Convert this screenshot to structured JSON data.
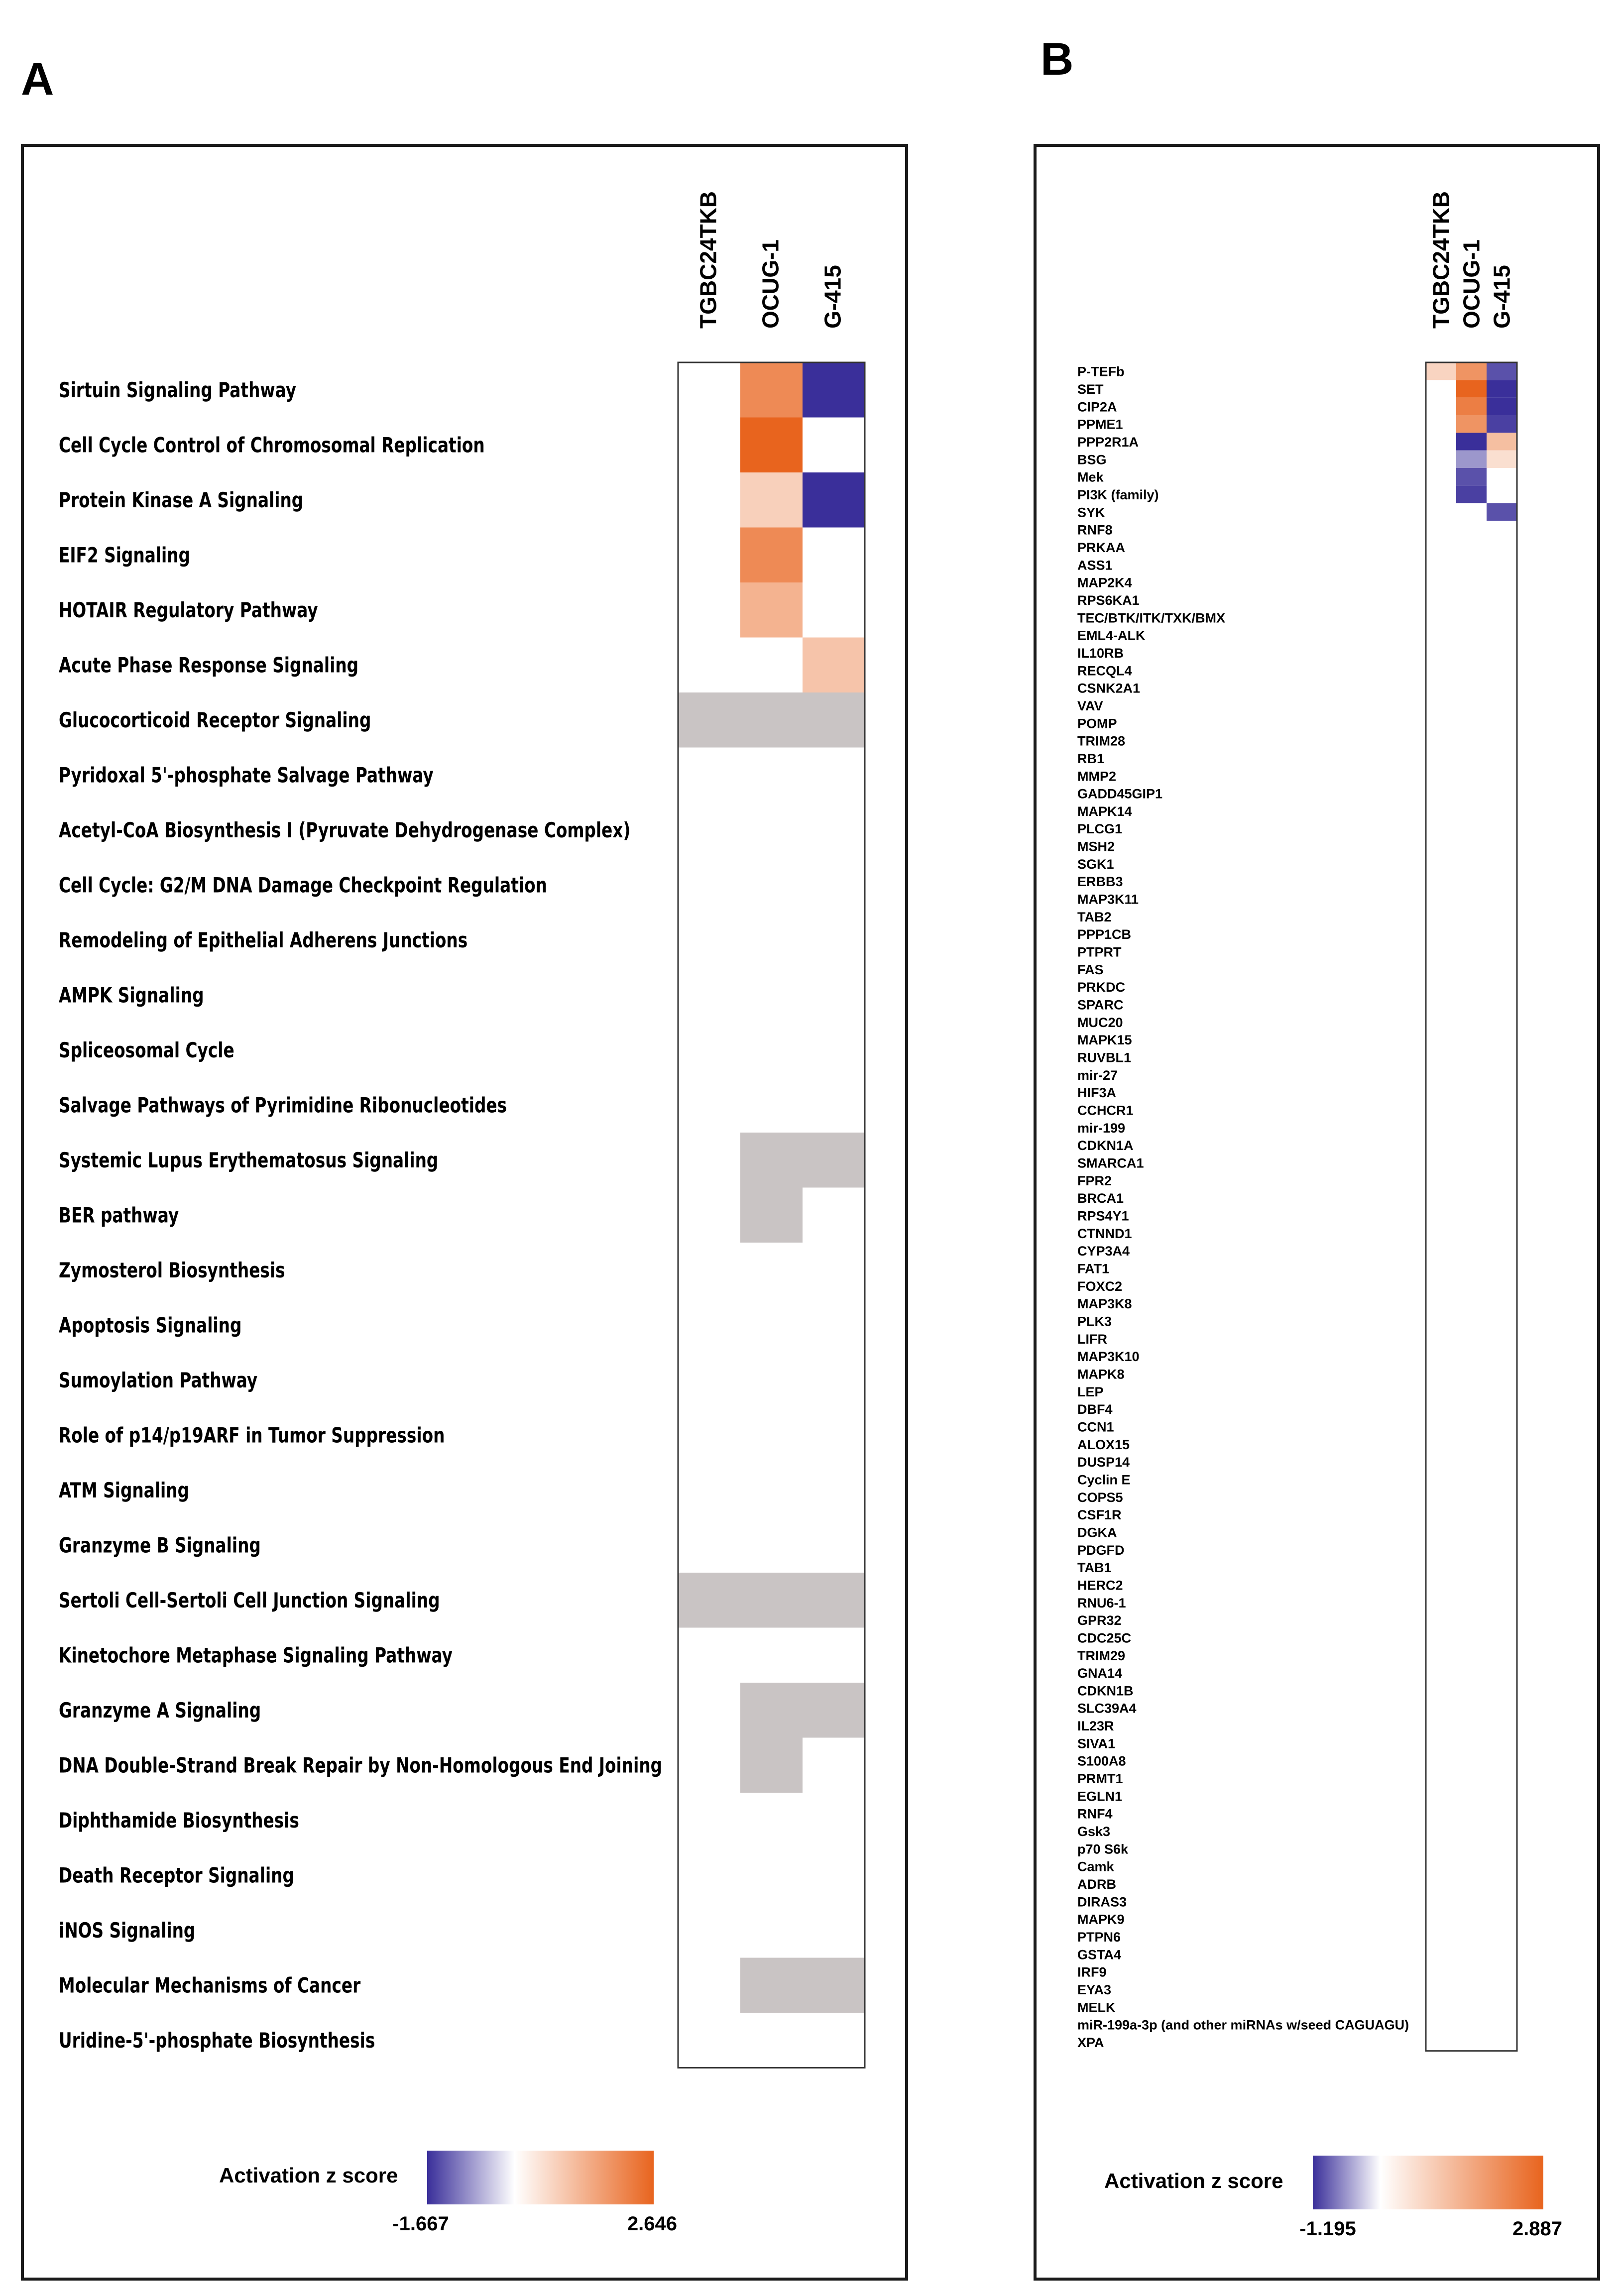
{
  "chart_data": [
    {
      "panel": "A",
      "type": "heatmap",
      "columns": [
        "TGBC24TKB",
        "OCUG-1",
        "G-415"
      ],
      "legend_title": "Activation z score",
      "scale_min": -1.667,
      "scale_max": 2.646,
      "scale_min_label": "-1.667",
      "scale_max_label": "2.646",
      "colors": {
        "low": "#3a2f9a",
        "mid": "#ffffff",
        "high": "#e8641e",
        "na": "#c9c4c4"
      },
      "rows": [
        {
          "label": "Sirtuin Signaling Pathway",
          "values": [
            null,
            2.0,
            -1.667
          ]
        },
        {
          "label": "Cell Cycle Control of Chromosomal Replication",
          "values": [
            null,
            2.646,
            null
          ]
        },
        {
          "label": "Protein Kinase A Signaling",
          "values": [
            null,
            0.8,
            -1.667
          ]
        },
        {
          "label": "EIF2 Signaling",
          "values": [
            null,
            2.0,
            null
          ]
        },
        {
          "label": "HOTAIR Regulatory Pathway",
          "values": [
            null,
            1.3,
            null
          ]
        },
        {
          "label": "Acute Phase Response Signaling",
          "values": [
            null,
            null,
            1.0
          ]
        },
        {
          "label": "Glucocorticoid Receptor Signaling",
          "values": [
            "na",
            "na",
            "na"
          ]
        },
        {
          "label": "Pyridoxal 5'-phosphate Salvage Pathway",
          "values": [
            null,
            null,
            null
          ]
        },
        {
          "label": "Acetyl-CoA Biosynthesis I (Pyruvate Dehydrogenase Complex)",
          "values": [
            null,
            null,
            null
          ]
        },
        {
          "label": "Cell Cycle: G2/M DNA Damage Checkpoint Regulation",
          "values": [
            null,
            null,
            null
          ]
        },
        {
          "label": "Remodeling of Epithelial Adherens Junctions",
          "values": [
            null,
            null,
            null
          ]
        },
        {
          "label": "AMPK Signaling",
          "values": [
            null,
            null,
            null
          ]
        },
        {
          "label": "Spliceosomal Cycle",
          "values": [
            null,
            null,
            null
          ]
        },
        {
          "label": "Salvage Pathways of Pyrimidine Ribonucleotides",
          "values": [
            null,
            null,
            null
          ]
        },
        {
          "label": "Systemic Lupus Erythematosus Signaling",
          "values": [
            null,
            "na",
            "na"
          ]
        },
        {
          "label": "BER pathway",
          "values": [
            null,
            "na",
            null
          ]
        },
        {
          "label": "Zymosterol Biosynthesis",
          "values": [
            null,
            null,
            null
          ]
        },
        {
          "label": "Apoptosis Signaling",
          "values": [
            null,
            null,
            null
          ]
        },
        {
          "label": "Sumoylation Pathway",
          "values": [
            null,
            null,
            null
          ]
        },
        {
          "label": "Role of p14/p19ARF in Tumor Suppression",
          "values": [
            null,
            null,
            null
          ]
        },
        {
          "label": "ATM Signaling",
          "values": [
            null,
            null,
            null
          ]
        },
        {
          "label": "Granzyme B Signaling",
          "values": [
            null,
            null,
            null
          ]
        },
        {
          "label": "Sertoli Cell-Sertoli Cell Junction Signaling",
          "values": [
            "na",
            "na",
            "na"
          ]
        },
        {
          "label": "Kinetochore Metaphase Signaling Pathway",
          "values": [
            null,
            null,
            null
          ]
        },
        {
          "label": "Granzyme A Signaling",
          "values": [
            null,
            "na",
            "na"
          ]
        },
        {
          "label": "DNA Double-Strand Break Repair by Non-Homologous End Joining",
          "values": [
            null,
            "na",
            null
          ]
        },
        {
          "label": "Diphthamide Biosynthesis",
          "values": [
            null,
            null,
            null
          ]
        },
        {
          "label": "Death Receptor Signaling",
          "values": [
            null,
            null,
            null
          ]
        },
        {
          "label": "iNOS Signaling",
          "values": [
            null,
            null,
            null
          ]
        },
        {
          "label": "Molecular Mechanisms of Cancer",
          "values": [
            null,
            "na",
            "na"
          ]
        },
        {
          "label": "Uridine-5'-phosphate Biosynthesis",
          "values": [
            null,
            null,
            null
          ]
        }
      ]
    },
    {
      "panel": "B",
      "type": "heatmap",
      "columns": [
        "TGBC24TKB",
        "OCUG-1",
        "G-415"
      ],
      "legend_title": "Activation z score",
      "scale_min": -1.195,
      "scale_max": 2.887,
      "scale_min_label": "-1.195",
      "scale_max_label": "2.887",
      "colors": {
        "low": "#3a2f9a",
        "mid": "#ffffff",
        "high": "#e8641e",
        "na": "#c9c4c4"
      },
      "rows": [
        {
          "label": "P-TEFb",
          "values": [
            0.8,
            2.0,
            -1.0
          ]
        },
        {
          "label": "SET",
          "values": [
            null,
            2.887,
            -1.195
          ]
        },
        {
          "label": "CIP2A",
          "values": [
            null,
            2.4,
            -1.195
          ]
        },
        {
          "label": "PPME1",
          "values": [
            null,
            2.0,
            -1.1
          ]
        },
        {
          "label": "PPP2R1A",
          "values": [
            null,
            -1.195,
            1.2
          ]
        },
        {
          "label": "BSG",
          "values": [
            null,
            -0.6,
            0.6
          ]
        },
        {
          "label": "Mek",
          "values": [
            null,
            -1.0,
            null
          ]
        },
        {
          "label": "PI3K (family)",
          "values": [
            null,
            -1.1,
            null
          ]
        },
        {
          "label": "SYK",
          "values": [
            null,
            null,
            -1.0
          ]
        },
        {
          "label": "RNF8",
          "values": [
            null,
            null,
            null
          ]
        },
        {
          "label": "PRKAA",
          "values": [
            null,
            null,
            null
          ]
        },
        {
          "label": "ASS1",
          "values": [
            null,
            null,
            null
          ]
        },
        {
          "label": "MAP2K4",
          "values": [
            null,
            null,
            null
          ]
        },
        {
          "label": "RPS6KA1",
          "values": [
            null,
            null,
            null
          ]
        },
        {
          "label": "TEC/BTK/ITK/TXK/BMX",
          "values": [
            null,
            null,
            null
          ]
        },
        {
          "label": "EML4-ALK",
          "values": [
            null,
            null,
            null
          ]
        },
        {
          "label": "IL10RB",
          "values": [
            null,
            null,
            null
          ]
        },
        {
          "label": "RECQL4",
          "values": [
            null,
            null,
            null
          ]
        },
        {
          "label": "CSNK2A1",
          "values": [
            null,
            null,
            null
          ]
        },
        {
          "label": "VAV",
          "values": [
            null,
            null,
            null
          ]
        },
        {
          "label": "POMP",
          "values": [
            null,
            null,
            null
          ]
        },
        {
          "label": "TRIM28",
          "values": [
            null,
            null,
            null
          ]
        },
        {
          "label": "RB1",
          "values": [
            null,
            null,
            null
          ]
        },
        {
          "label": "MMP2",
          "values": [
            null,
            null,
            null
          ]
        },
        {
          "label": "GADD45GIP1",
          "values": [
            null,
            null,
            null
          ]
        },
        {
          "label": "MAPK14",
          "values": [
            null,
            null,
            null
          ]
        },
        {
          "label": "PLCG1",
          "values": [
            null,
            null,
            null
          ]
        },
        {
          "label": "MSH2",
          "values": [
            null,
            null,
            null
          ]
        },
        {
          "label": "SGK1",
          "values": [
            null,
            null,
            null
          ]
        },
        {
          "label": "ERBB3",
          "values": [
            null,
            null,
            null
          ]
        },
        {
          "label": "MAP3K11",
          "values": [
            null,
            null,
            null
          ]
        },
        {
          "label": "TAB2",
          "values": [
            null,
            null,
            null
          ]
        },
        {
          "label": "PPP1CB",
          "values": [
            null,
            null,
            null
          ]
        },
        {
          "label": "PTPRT",
          "values": [
            null,
            null,
            null
          ]
        },
        {
          "label": "FAS",
          "values": [
            null,
            null,
            null
          ]
        },
        {
          "label": "PRKDC",
          "values": [
            null,
            null,
            null
          ]
        },
        {
          "label": "SPARC",
          "values": [
            null,
            null,
            null
          ]
        },
        {
          "label": "MUC20",
          "values": [
            null,
            null,
            null
          ]
        },
        {
          "label": "MAPK15",
          "values": [
            null,
            null,
            null
          ]
        },
        {
          "label": "RUVBL1",
          "values": [
            null,
            null,
            null
          ]
        },
        {
          "label": "mir-27",
          "values": [
            null,
            null,
            null
          ]
        },
        {
          "label": "HIF3A",
          "values": [
            null,
            null,
            null
          ]
        },
        {
          "label": "CCHCR1",
          "values": [
            null,
            null,
            null
          ]
        },
        {
          "label": "mir-199",
          "values": [
            null,
            null,
            null
          ]
        },
        {
          "label": "CDKN1A",
          "values": [
            null,
            null,
            null
          ]
        },
        {
          "label": "SMARCA1",
          "values": [
            null,
            null,
            null
          ]
        },
        {
          "label": "FPR2",
          "values": [
            null,
            null,
            null
          ]
        },
        {
          "label": "BRCA1",
          "values": [
            null,
            null,
            null
          ]
        },
        {
          "label": "RPS4Y1",
          "values": [
            null,
            null,
            null
          ]
        },
        {
          "label": "CTNND1",
          "values": [
            null,
            null,
            null
          ]
        },
        {
          "label": "CYP3A4",
          "values": [
            null,
            null,
            null
          ]
        },
        {
          "label": "FAT1",
          "values": [
            null,
            null,
            null
          ]
        },
        {
          "label": "FOXC2",
          "values": [
            null,
            null,
            null
          ]
        },
        {
          "label": "MAP3K8",
          "values": [
            null,
            null,
            null
          ]
        },
        {
          "label": "PLK3",
          "values": [
            null,
            null,
            null
          ]
        },
        {
          "label": "LIFR",
          "values": [
            null,
            null,
            null
          ]
        },
        {
          "label": "MAP3K10",
          "values": [
            null,
            null,
            null
          ]
        },
        {
          "label": "MAPK8",
          "values": [
            null,
            null,
            null
          ]
        },
        {
          "label": "LEP",
          "values": [
            null,
            null,
            null
          ]
        },
        {
          "label": "DBF4",
          "values": [
            null,
            null,
            null
          ]
        },
        {
          "label": "CCN1",
          "values": [
            null,
            null,
            null
          ]
        },
        {
          "label": "ALOX15",
          "values": [
            null,
            null,
            null
          ]
        },
        {
          "label": "DUSP14",
          "values": [
            null,
            null,
            null
          ]
        },
        {
          "label": "Cyclin E",
          "values": [
            null,
            null,
            null
          ]
        },
        {
          "label": "COPS5",
          "values": [
            null,
            null,
            null
          ]
        },
        {
          "label": "CSF1R",
          "values": [
            null,
            null,
            null
          ]
        },
        {
          "label": "DGKA",
          "values": [
            null,
            null,
            null
          ]
        },
        {
          "label": "PDGFD",
          "values": [
            null,
            null,
            null
          ]
        },
        {
          "label": "TAB1",
          "values": [
            null,
            null,
            null
          ]
        },
        {
          "label": "HERC2",
          "values": [
            null,
            null,
            null
          ]
        },
        {
          "label": "RNU6-1",
          "values": [
            null,
            null,
            null
          ]
        },
        {
          "label": "GPR32",
          "values": [
            null,
            null,
            null
          ]
        },
        {
          "label": "CDC25C",
          "values": [
            null,
            null,
            null
          ]
        },
        {
          "label": "TRIM29",
          "values": [
            null,
            null,
            null
          ]
        },
        {
          "label": "GNA14",
          "values": [
            null,
            null,
            null
          ]
        },
        {
          "label": "CDKN1B",
          "values": [
            null,
            null,
            null
          ]
        },
        {
          "label": "SLC39A4",
          "values": [
            null,
            null,
            null
          ]
        },
        {
          "label": "IL23R",
          "values": [
            null,
            null,
            null
          ]
        },
        {
          "label": "SIVA1",
          "values": [
            null,
            null,
            null
          ]
        },
        {
          "label": "S100A8",
          "values": [
            null,
            null,
            null
          ]
        },
        {
          "label": "PRMT1",
          "values": [
            null,
            null,
            null
          ]
        },
        {
          "label": "EGLN1",
          "values": [
            null,
            null,
            null
          ]
        },
        {
          "label": "RNF4",
          "values": [
            null,
            null,
            null
          ]
        },
        {
          "label": "Gsk3",
          "values": [
            null,
            null,
            null
          ]
        },
        {
          "label": "p70 S6k",
          "values": [
            null,
            null,
            null
          ]
        },
        {
          "label": "Camk",
          "values": [
            null,
            null,
            null
          ]
        },
        {
          "label": "ADRB",
          "values": [
            null,
            null,
            null
          ]
        },
        {
          "label": "DIRAS3",
          "values": [
            null,
            null,
            null
          ]
        },
        {
          "label": "MAPK9",
          "values": [
            null,
            null,
            null
          ]
        },
        {
          "label": "PTPN6",
          "values": [
            null,
            null,
            null
          ]
        },
        {
          "label": "GSTA4",
          "values": [
            null,
            null,
            null
          ]
        },
        {
          "label": "IRF9",
          "values": [
            null,
            null,
            null
          ]
        },
        {
          "label": "EYA3",
          "values": [
            null,
            null,
            null
          ]
        },
        {
          "label": "MELK",
          "values": [
            null,
            null,
            null
          ]
        },
        {
          "label": "miR-199a-3p (and other miRNAs w/seed CAGUAGU)",
          "values": [
            null,
            null,
            null
          ]
        },
        {
          "label": "XPA",
          "values": [
            null,
            null,
            null
          ]
        }
      ]
    }
  ],
  "panel_labels": [
    "A",
    "B"
  ]
}
